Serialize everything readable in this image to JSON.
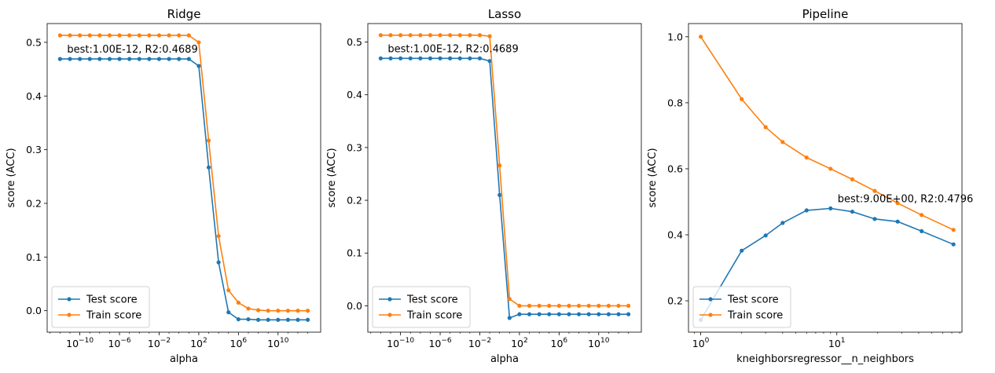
{
  "chart_data": [
    {
      "type": "line",
      "title": "Ridge",
      "xlabel": "alpha",
      "ylabel": "score (ACC)",
      "xscale": "log",
      "xlim_log10": [
        -13.3,
        14.3
      ],
      "ylim": [
        -0.04,
        0.535
      ],
      "xticks": [
        {
          "base": "10",
          "exp": "−10",
          "log10": -10
        },
        {
          "base": "10",
          "exp": "−6",
          "log10": -6
        },
        {
          "base": "10",
          "exp": "−2",
          "log10": -2
        },
        {
          "base": "10",
          "exp": "2",
          "log10": 2
        },
        {
          "base": "10",
          "exp": "6",
          "log10": 6
        },
        {
          "base": "10",
          "exp": "10",
          "log10": 10
        }
      ],
      "yticks": [
        "0.0",
        "0.1",
        "0.2",
        "0.3",
        "0.4",
        "0.5"
      ],
      "ytick_values": [
        0.0,
        0.1,
        0.2,
        0.3,
        0.4,
        0.5
      ],
      "x_log10": [
        -12,
        -11,
        -10,
        -9,
        -8,
        -7,
        -6,
        -5,
        -4,
        -3,
        -2,
        -1,
        0,
        1,
        2,
        3,
        4,
        5,
        6,
        7,
        8,
        9,
        10,
        11,
        12,
        13
      ],
      "series": [
        {
          "name": "Test score",
          "color": "#1f77b4",
          "values": [
            0.469,
            0.469,
            0.469,
            0.469,
            0.469,
            0.469,
            0.469,
            0.469,
            0.469,
            0.469,
            0.469,
            0.469,
            0.469,
            0.469,
            0.456,
            0.267,
            0.09,
            -0.003,
            -0.016,
            -0.016,
            -0.017,
            -0.017,
            -0.017,
            -0.017,
            -0.017,
            -0.017
          ]
        },
        {
          "name": "Train score",
          "color": "#ff7f0e",
          "values": [
            0.513,
            0.513,
            0.513,
            0.513,
            0.513,
            0.513,
            0.513,
            0.513,
            0.513,
            0.513,
            0.513,
            0.513,
            0.513,
            0.513,
            0.5,
            0.317,
            0.139,
            0.038,
            0.015,
            0.004,
            0.001,
            0.0,
            0.0,
            0.0,
            0.0,
            0.0
          ]
        }
      ],
      "annotation": {
        "text": "best:1.00E-12, R2:0.4689",
        "x_log10": -12,
        "y": 0.469
      },
      "legend_loc": "lower left"
    },
    {
      "type": "line",
      "title": "Lasso",
      "xlabel": "alpha",
      "ylabel": "score (ACC)",
      "xscale": "log",
      "xlim_log10": [
        -13.3,
        14.3
      ],
      "ylim": [
        -0.05,
        0.535
      ],
      "xticks": [
        {
          "base": "10",
          "exp": "−10",
          "log10": -10
        },
        {
          "base": "10",
          "exp": "−6",
          "log10": -6
        },
        {
          "base": "10",
          "exp": "−2",
          "log10": -2
        },
        {
          "base": "10",
          "exp": "2",
          "log10": 2
        },
        {
          "base": "10",
          "exp": "6",
          "log10": 6
        },
        {
          "base": "10",
          "exp": "10",
          "log10": 10
        }
      ],
      "yticks": [
        "0.0",
        "0.1",
        "0.2",
        "0.3",
        "0.4",
        "0.5"
      ],
      "ytick_values": [
        0.0,
        0.1,
        0.2,
        0.3,
        0.4,
        0.5
      ],
      "x_log10": [
        -12,
        -11,
        -10,
        -9,
        -8,
        -7,
        -6,
        -5,
        -4,
        -3,
        -2,
        -1,
        0,
        1,
        2,
        3,
        4,
        5,
        6,
        7,
        8,
        9,
        10,
        11,
        12,
        13
      ],
      "series": [
        {
          "name": "Test score",
          "color": "#1f77b4",
          "values": [
            0.469,
            0.469,
            0.469,
            0.469,
            0.469,
            0.469,
            0.469,
            0.469,
            0.469,
            0.469,
            0.469,
            0.464,
            0.21,
            -0.023,
            -0.016,
            -0.016,
            -0.016,
            -0.016,
            -0.016,
            -0.016,
            -0.016,
            -0.016,
            -0.016,
            -0.016,
            -0.016,
            -0.016
          ]
        },
        {
          "name": "Train score",
          "color": "#ff7f0e",
          "values": [
            0.513,
            0.513,
            0.513,
            0.513,
            0.513,
            0.513,
            0.513,
            0.513,
            0.513,
            0.513,
            0.513,
            0.511,
            0.266,
            0.013,
            0.0,
            0.0,
            0.0,
            0.0,
            0.0,
            0.0,
            0.0,
            0.0,
            0.0,
            0.0,
            0.0,
            0.0
          ]
        }
      ],
      "annotation": {
        "text": "best:1.00E-12, R2:0.4689",
        "x_log10": -12,
        "y": 0.469
      },
      "legend_loc": "lower left"
    },
    {
      "type": "line",
      "title": "Pipeline",
      "xlabel": "kneighborsregressor__n_neighbors",
      "ylabel": "score (ACC)",
      "xscale": "log",
      "xlim_log10": [
        -0.09,
        1.92
      ],
      "ylim": [
        0.105,
        1.04
      ],
      "xticks": [
        {
          "base": "10",
          "exp": "0",
          "log10": 0
        },
        {
          "base": "10",
          "exp": "1",
          "log10": 1
        }
      ],
      "yticks": [
        "0.2",
        "0.4",
        "0.6",
        "0.8",
        "1.0"
      ],
      "ytick_values": [
        0.2,
        0.4,
        0.6,
        0.8,
        1.0
      ],
      "x": [
        1,
        2,
        3,
        4,
        6,
        9,
        13,
        19,
        28,
        42,
        72
      ],
      "series": [
        {
          "name": "Test score",
          "color": "#1f77b4",
          "values": [
            0.142,
            0.352,
            0.398,
            0.436,
            0.474,
            0.48,
            0.47,
            0.448,
            0.44,
            0.411,
            0.371
          ]
        },
        {
          "name": "Train score",
          "color": "#ff7f0e",
          "values": [
            1.0,
            0.811,
            0.726,
            0.681,
            0.634,
            0.6,
            0.568,
            0.533,
            0.496,
            0.46,
            0.415
          ]
        }
      ],
      "annotation": {
        "text": "best:9.00E+00, R2:0.4796",
        "x": 9,
        "y": 0.4796
      },
      "legend_loc": "lower left"
    }
  ]
}
